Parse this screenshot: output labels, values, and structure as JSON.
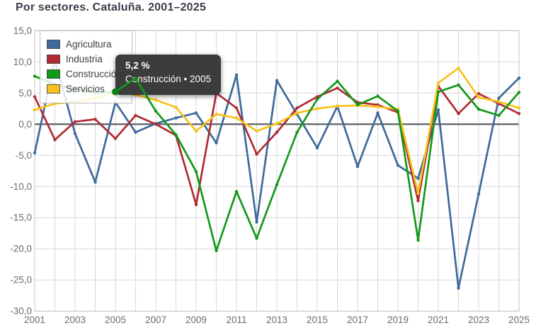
{
  "title": "Por sectores. Cataluña. 2001–2025",
  "colors": {
    "agricultura": "#3d6a9b",
    "industria": "#b02b33",
    "construccion": "#12991a",
    "servicios": "#f7c21e",
    "zero_line": "#55575c",
    "grid": "#d7d7d7",
    "plot_border": "#c4c4c4",
    "axis_text": "#6c6c6c",
    "title_text": "#3c3c4a",
    "tooltip_bg": "#363636",
    "tooltip_text": "#ffffff"
  },
  "legend": {
    "items": [
      {
        "label": "Agricultura",
        "color_key": "agricultura"
      },
      {
        "label": "Industria",
        "color_key": "industria"
      },
      {
        "label": "Construcción",
        "color_key": "construccion"
      },
      {
        "label": "Servicios",
        "color_key": "servicios"
      }
    ]
  },
  "tooltip": {
    "value": "5,2 %",
    "line2": "Construcción • 2005",
    "point_series": "Construcción",
    "point_year": 2005,
    "point_value": 5.2
  },
  "chart_data": {
    "type": "line",
    "title": "Por sectores. Cataluña. 2001–2025",
    "x": [
      2001,
      2002,
      2003,
      2004,
      2005,
      2006,
      2007,
      2008,
      2009,
      2010,
      2011,
      2012,
      2013,
      2014,
      2015,
      2016,
      2017,
      2018,
      2019,
      2020,
      2021,
      2022,
      2023,
      2024,
      2025
    ],
    "series": [
      {
        "name": "Agricultura",
        "color_key": "agricultura",
        "values": [
          -4.6,
          10.4,
          -1.5,
          -9.3,
          3.5,
          -1.3,
          0.1,
          1.0,
          1.8,
          -3.0,
          7.9,
          -15.7,
          7.0,
          1.6,
          -3.8,
          2.9,
          -6.8,
          1.8,
          -6.6,
          -8.7,
          2.3,
          -26.3,
          -11.2,
          4.2,
          7.4
        ]
      },
      {
        "name": "Industria",
        "color_key": "industria",
        "values": [
          4.4,
          -2.5,
          0.4,
          0.8,
          -2.3,
          1.4,
          0.0,
          -1.8,
          -12.9,
          5.0,
          2.6,
          -4.8,
          -1.3,
          2.6,
          4.4,
          5.8,
          3.5,
          3.1,
          1.9,
          -12.3,
          6.1,
          1.7,
          4.9,
          3.3,
          1.7
        ]
      },
      {
        "name": "Construcción",
        "color_key": "construccion",
        "values": [
          7.7,
          6.4,
          5.6,
          5.0,
          5.2,
          7.4,
          2.1,
          -1.7,
          -7.6,
          -20.3,
          -10.8,
          -18.3,
          -9.7,
          -1.3,
          4.0,
          6.9,
          3.1,
          4.5,
          2.1,
          -18.6,
          5.2,
          6.3,
          2.4,
          1.4,
          5.1
        ]
      },
      {
        "name": "Servicios",
        "color_key": "servicios",
        "values": [
          2.3,
          3.3,
          3.6,
          4.2,
          5.0,
          4.7,
          3.9,
          2.7,
          -1.1,
          1.6,
          1.0,
          -1.1,
          0.1,
          1.8,
          2.5,
          2.9,
          3.0,
          2.8,
          2.4,
          -11.1,
          6.6,
          9.0,
          4.3,
          3.6,
          2.6
        ]
      }
    ],
    "ylim": [
      -30,
      15
    ],
    "ytick_step": 5,
    "grid": true,
    "legend_position": "top-left",
    "units": "%",
    "y_axis": {
      "tick_values": [
        15,
        10,
        5,
        0,
        -5,
        -10,
        -15,
        -20,
        -25,
        -30
      ],
      "tick_labels": [
        "15,0",
        "10,0",
        "5,0",
        "0,0",
        "-5,0",
        "-10,0",
        "-15,0",
        "-20,0",
        "-25,0",
        "-30,0"
      ]
    },
    "x_axis": {
      "tick_values": [
        2001,
        2003,
        2005,
        2007,
        2009,
        2011,
        2013,
        2015,
        2017,
        2019,
        2021,
        2023,
        2025
      ],
      "tick_labels": [
        "2001",
        "2003",
        "2005",
        "2007",
        "2009",
        "2011",
        "2013",
        "2015",
        "2017",
        "2019",
        "2021",
        "2023",
        "2025"
      ]
    }
  }
}
